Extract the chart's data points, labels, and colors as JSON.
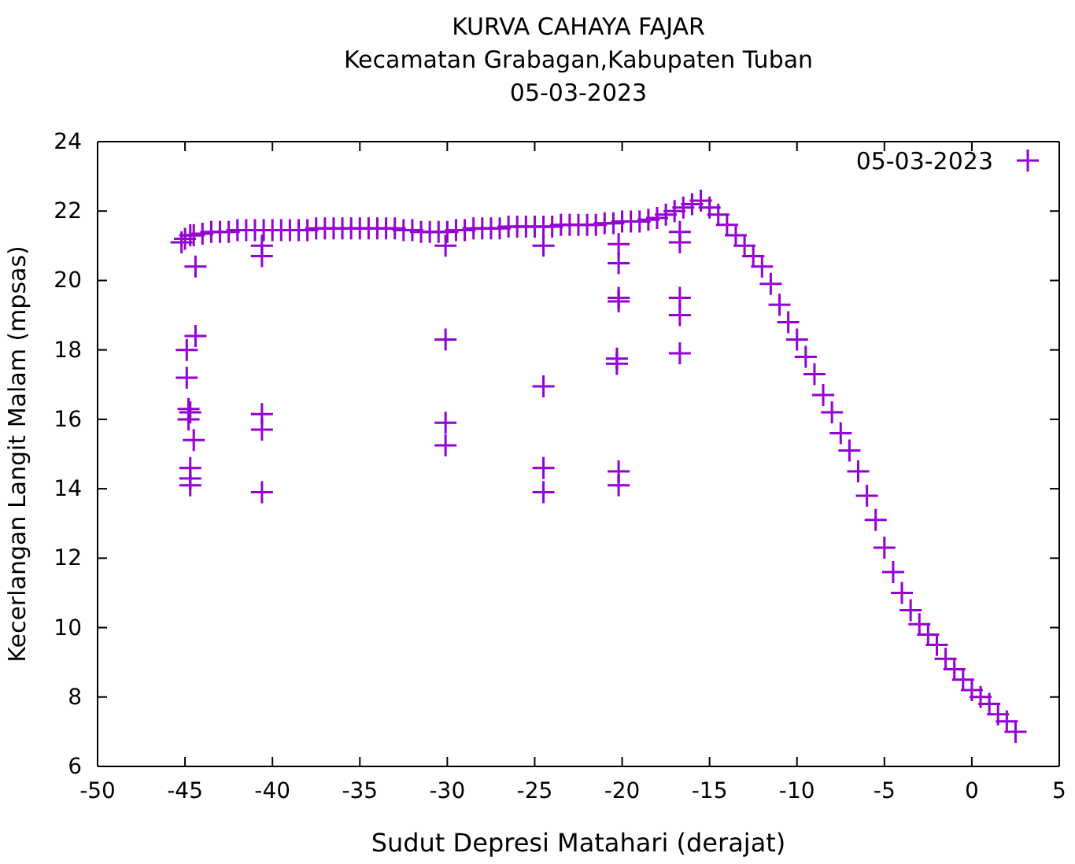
{
  "chart_data": {
    "type": "scatter",
    "title": "KURVA CAHAYA FAJAR",
    "subtitle": "Kecamatan Grabagan,Kabupaten Tuban\n05-03-2023",
    "xlabel": "Sudut Depresi Matahari (derajat)",
    "ylabel": "Kecerlangan Langit Malam (mpsas)",
    "xlim": [
      -50,
      5
    ],
    "ylim": [
      6,
      24
    ],
    "xticks": [
      -50,
      -45,
      -40,
      -35,
      -30,
      -25,
      -20,
      -15,
      -10,
      -5,
      0,
      5
    ],
    "yticks": [
      6,
      8,
      10,
      12,
      14,
      16,
      18,
      20,
      22,
      24
    ],
    "grid": false,
    "legend": "top right",
    "marker": "cross",
    "series": [
      {
        "name": "05-03-2023",
        "color": "#9400d3",
        "x": [
          -45.2,
          -45,
          -44.7,
          -44.5,
          -44,
          -43.5,
          -43,
          -42.5,
          -42,
          -41.5,
          -41,
          -40.5,
          -40,
          -39.5,
          -39,
          -38.5,
          -38,
          -37.5,
          -37,
          -36.5,
          -36,
          -35.5,
          -35,
          -34.5,
          -34,
          -33.5,
          -33,
          -32.5,
          -32,
          -31.5,
          -31,
          -30.5,
          -30,
          -29.5,
          -29,
          -28.5,
          -28,
          -27.5,
          -27,
          -26.5,
          -26,
          -25.5,
          -25,
          -24.5,
          -24,
          -23.5,
          -23,
          -22.5,
          -22,
          -21.5,
          -21,
          -20.5,
          -20,
          -19.5,
          -19,
          -18.5,
          -18,
          -17.5,
          -17,
          -16.5,
          -16,
          -15.5,
          -15,
          -14.5,
          -14,
          -13.5,
          -13,
          -12.5,
          -12,
          -11.5,
          -11,
          -10.5,
          -10,
          -9.5,
          -9,
          -8.5,
          -8,
          -7.5,
          -7,
          -6.5,
          -6,
          -5.5,
          -5,
          -4.5,
          -4,
          -3.5,
          -3,
          -2.5,
          -2,
          -1.5,
          -1,
          -0.5,
          0,
          0.5,
          1,
          1.5,
          2,
          2.5,
          -44.4,
          -44.4,
          -44.9,
          -44.9,
          -44.7,
          -44.8,
          -44.8,
          -44.5,
          -44.7,
          -44.7,
          -44.7,
          -40.6,
          -40.6,
          -40.6,
          -40.6,
          -40.6,
          -30.1,
          -30.1,
          -30.1,
          -30.1,
          -24.5,
          -24.5,
          -24.5,
          -24.5,
          -20.2,
          -20.2,
          -20.2,
          -20.2,
          -20.3,
          -20.3,
          -20.2,
          -20.2,
          -16.7,
          -16.7,
          -16.7,
          -16.7,
          -16.7
        ],
        "values": [
          21.1,
          21.2,
          21.3,
          21.3,
          21.35,
          21.4,
          21.4,
          21.4,
          21.45,
          21.45,
          21.45,
          21.45,
          21.45,
          21.45,
          21.45,
          21.45,
          21.45,
          21.5,
          21.5,
          21.5,
          21.5,
          21.5,
          21.5,
          21.5,
          21.5,
          21.5,
          21.5,
          21.45,
          21.45,
          21.4,
          21.4,
          21.4,
          21.4,
          21.45,
          21.45,
          21.5,
          21.5,
          21.5,
          21.5,
          21.55,
          21.55,
          21.55,
          21.55,
          21.55,
          21.55,
          21.6,
          21.6,
          21.6,
          21.6,
          21.6,
          21.65,
          21.65,
          21.7,
          21.7,
          21.7,
          21.75,
          21.8,
          21.9,
          22,
          22.1,
          22.2,
          22.3,
          22.1,
          21.9,
          21.6,
          21.3,
          21,
          20.7,
          20.4,
          19.9,
          19.3,
          18.8,
          18.3,
          17.8,
          17.3,
          16.7,
          16.2,
          15.6,
          15.1,
          14.5,
          13.8,
          13.1,
          12.3,
          11.6,
          11,
          10.5,
          10.1,
          9.8,
          9.5,
          9.1,
          8.8,
          8.5,
          8.2,
          8,
          7.8,
          7.5,
          7.3,
          7,
          20.4,
          18.4,
          18,
          17.2,
          16.2,
          16,
          16.3,
          15.4,
          14.6,
          14.3,
          14.1,
          21,
          20.7,
          16.15,
          15.7,
          13.9,
          21,
          18.3,
          15.9,
          15.25,
          21,
          16.95,
          14.6,
          13.9,
          21.05,
          20.5,
          19.5,
          19.4,
          17.75,
          17.6,
          14.5,
          14.1,
          21.4,
          21.1,
          19.5,
          19,
          17.9
        ]
      }
    ]
  }
}
